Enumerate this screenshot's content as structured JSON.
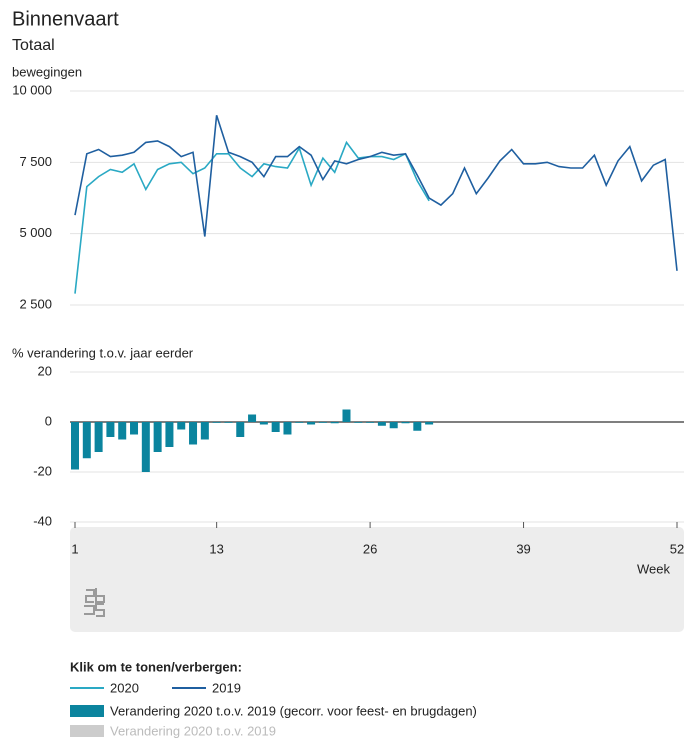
{
  "title": "Binnenvaart",
  "subtitle": "Totaal",
  "legend_title": "Klik om te tonen/verbergen:",
  "chart_data": [
    {
      "type": "line",
      "ylabel": "bewegingen",
      "x": [
        1,
        2,
        3,
        4,
        5,
        6,
        7,
        8,
        9,
        10,
        11,
        12,
        13,
        14,
        15,
        16,
        17,
        18,
        19,
        20,
        21,
        22,
        23,
        24,
        25,
        26,
        27,
        28,
        29,
        30,
        31,
        32,
        33,
        34,
        35,
        36,
        37,
        38,
        39,
        40,
        41,
        42,
        43,
        44,
        45,
        46,
        47,
        48,
        49,
        50,
        51,
        52
      ],
      "xlim": [
        1,
        52
      ],
      "ylim": [
        2500,
        10000
      ],
      "yticks": [
        {
          "value": 10000,
          "label": "10 000"
        },
        {
          "value": 7500,
          "label": "7 500"
        },
        {
          "value": 5000,
          "label": "5 000"
        },
        {
          "value": 2500,
          "label": "2 500"
        }
      ],
      "grid": true,
      "series": [
        {
          "name": "2020",
          "color": "#2aa9c4",
          "values": [
            2900,
            6650,
            7000,
            7250,
            7150,
            7450,
            6550,
            7250,
            7450,
            7500,
            7100,
            7300,
            7800,
            7800,
            7300,
            7000,
            7450,
            7350,
            7300,
            8000,
            6700,
            7650,
            7150,
            8200,
            7650,
            7700,
            7700,
            7600,
            7800,
            6850,
            6150,
            null,
            null,
            null,
            null,
            null,
            null,
            null,
            null,
            null,
            null,
            null,
            null,
            null,
            null,
            null,
            null,
            null,
            null,
            null,
            null,
            null
          ]
        },
        {
          "name": "2019",
          "color": "#1f5fa0",
          "values": [
            5650,
            7800,
            7950,
            7700,
            7750,
            7850,
            8200,
            8250,
            8050,
            7700,
            7850,
            4900,
            9150,
            7850,
            7700,
            7500,
            7000,
            7700,
            7700,
            8050,
            7750,
            6900,
            7550,
            7450,
            7600,
            7700,
            7850,
            7750,
            7800,
            7050,
            6250,
            6000,
            6400,
            7300,
            6400,
            6950,
            7550,
            7950,
            7450,
            7450,
            7500,
            7350,
            7300,
            7300,
            7750,
            6700,
            7550,
            8050,
            6850,
            7400,
            7600,
            3700
          ]
        }
      ]
    },
    {
      "type": "bar",
      "ylabel": "% verandering t.o.v. jaar eerder",
      "xlabel": "Week",
      "x": [
        1,
        2,
        3,
        4,
        5,
        6,
        7,
        8,
        9,
        10,
        11,
        12,
        13,
        14,
        15,
        16,
        17,
        18,
        19,
        20,
        21,
        22,
        23,
        24,
        25,
        26,
        27,
        28,
        29,
        30,
        31,
        32,
        33,
        34,
        35,
        36,
        37,
        38,
        39,
        40,
        41,
        42,
        43,
        44,
        45,
        46,
        47,
        48,
        49,
        50,
        51,
        52
      ],
      "xlim": [
        1,
        52
      ],
      "xticks": [
        1,
        13,
        26,
        39,
        52
      ],
      "ylim": [
        -40,
        20
      ],
      "yticks": [
        20,
        0,
        -20,
        -40
      ],
      "grid": true,
      "series": [
        {
          "name": "Verandering 2020 t.o.v. 2019 (gecorr. voor feest- en brugdagen)",
          "color": "#0b849e",
          "values": [
            -19,
            -14.5,
            -12,
            -6,
            -7,
            -5,
            -20,
            -12,
            -10,
            -3,
            -9,
            -7,
            0,
            0,
            -6,
            3,
            -1,
            -4,
            -5,
            0,
            -1,
            0,
            -0.5,
            5,
            0,
            0,
            -1.5,
            -2.5,
            -0.5,
            -3.5,
            -1,
            null,
            null,
            null,
            null,
            null,
            null,
            null,
            null,
            null,
            null,
            null,
            null,
            null,
            null,
            null,
            null,
            null,
            null,
            null,
            null,
            null
          ]
        },
        {
          "name": "Verandering 2020 t.o.v. 2019",
          "color": "#cccccc",
          "hidden": true,
          "values": [
            null,
            null,
            null,
            null,
            null,
            null,
            null,
            null,
            null,
            null,
            null,
            null,
            null,
            null,
            null,
            null,
            null,
            null,
            null,
            null,
            null,
            null,
            null,
            null,
            null,
            null,
            null,
            null,
            null,
            null,
            null,
            null,
            null,
            null,
            null,
            null,
            null,
            null,
            null,
            null,
            null,
            null,
            null,
            null,
            null,
            null,
            null,
            null,
            null,
            null,
            null,
            null
          ]
        }
      ]
    }
  ]
}
